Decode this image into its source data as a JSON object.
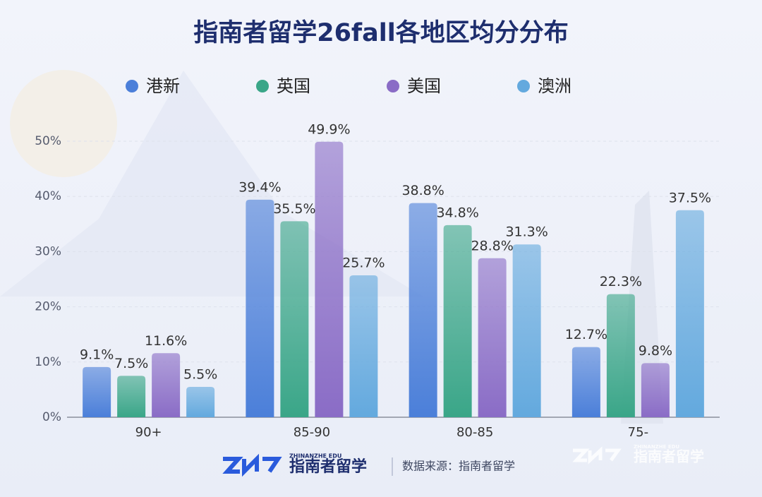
{
  "chart_data": {
    "type": "bar",
    "title": "指南者留学26fall各地区均分分布",
    "categories": [
      "90+",
      "85-90",
      "80-85",
      "75-"
    ],
    "series": [
      {
        "name": "港新",
        "color": "#4b7fd9",
        "values": [
          9.1,
          39.4,
          38.8,
          12.7
        ],
        "value_labels": [
          "9.1%",
          "39.4%",
          "38.8%",
          "12.7%"
        ]
      },
      {
        "name": "英国",
        "color": "#3aa688",
        "values": [
          7.5,
          35.5,
          34.8,
          22.3
        ],
        "value_labels": [
          "7.5%",
          "35.5%",
          "34.8%",
          "22.3%"
        ]
      },
      {
        "name": "美国",
        "color": "#8a6cc6",
        "values": [
          11.6,
          49.9,
          28.8,
          9.8
        ],
        "value_labels": [
          "11.6%",
          "49.9%",
          "28.8%",
          "9.8%"
        ]
      },
      {
        "name": "澳洲",
        "color": "#63a9de",
        "values": [
          5.5,
          25.7,
          31.3,
          37.5
        ],
        "value_labels": [
          "5.5%",
          "25.7%",
          "31.3%",
          "37.5%"
        ]
      }
    ],
    "ylim": [
      0,
      50
    ],
    "yticks": [
      {
        "value": 0,
        "label": "0%"
      },
      {
        "value": 10,
        "label": "10%"
      },
      {
        "value": 20,
        "label": "20%"
      },
      {
        "value": 30,
        "label": "30%"
      },
      {
        "value": 40,
        "label": "40%"
      },
      {
        "value": 50,
        "label": "50%"
      }
    ],
    "grid": true
  },
  "footer": {
    "logo_sub": "ZHINANZHE EDU",
    "logo_name": "指南者留学",
    "source": "数据来源：指南者留学",
    "watermark_sub": "ZHINANZHE EDU",
    "watermark_name": "指南者留学"
  }
}
